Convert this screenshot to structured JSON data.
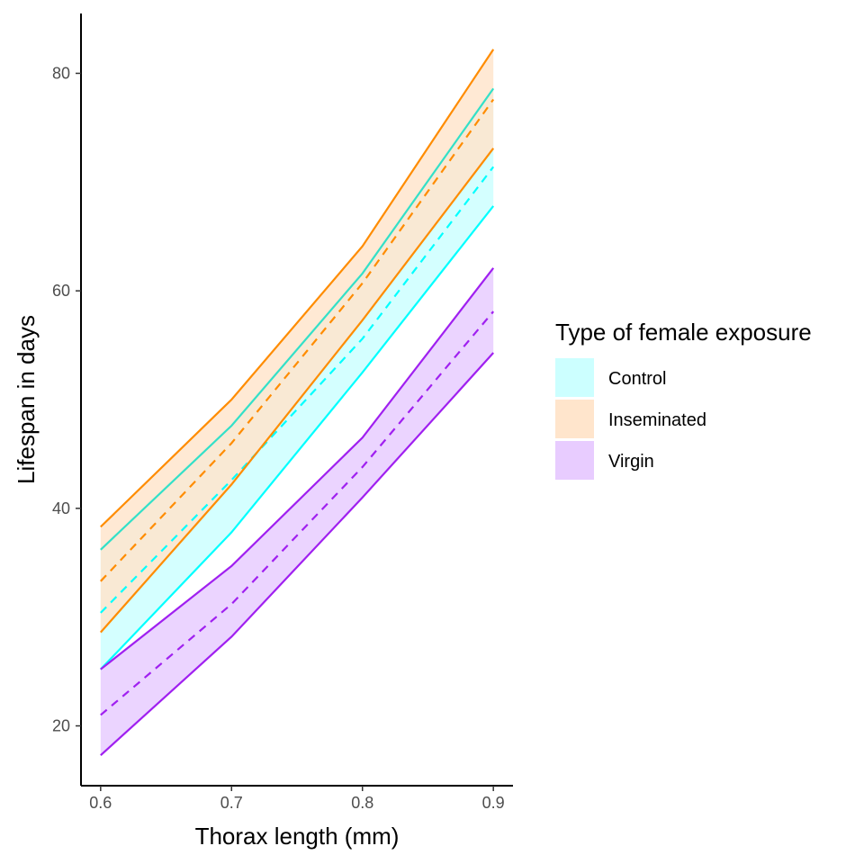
{
  "chart_data": {
    "type": "area",
    "xlabel": "Thorax length (mm)",
    "ylabel": "Lifespan in days",
    "x": [
      0.6,
      0.7,
      0.8,
      0.9
    ],
    "x_ticks": [
      "0.6",
      "0.7",
      "0.8",
      "0.9"
    ],
    "y_ticks": [
      "20",
      "40",
      "60",
      "80"
    ],
    "xlim": [
      0.585,
      0.915
    ],
    "ylim": [
      14.5,
      85.5
    ],
    "grid": false,
    "legend_title": "Type of female exposure",
    "legend_position": "right",
    "series": [
      {
        "name": "Control",
        "fill": "#ccffff",
        "line_color": "#00ffff",
        "upper_color": "#33e0c8",
        "fit": [
          30.4,
          42.6,
          55.6,
          71.4
        ],
        "lower": [
          25.2,
          37.8,
          52.5,
          67.8
        ],
        "upper": [
          36.2,
          47.6,
          61.6,
          78.6
        ]
      },
      {
        "name": "Inseminated",
        "fill": "#ffe5cc",
        "line_color": "#ff8c00",
        "upper_color": "#ff8c00",
        "fit": [
          33.3,
          46.0,
          60.7,
          77.6
        ],
        "lower": [
          28.6,
          42.2,
          57.3,
          73.1
        ],
        "upper": [
          38.3,
          50.0,
          64.1,
          82.2
        ]
      },
      {
        "name": "Virgin",
        "fill": "#e8ccff",
        "line_color": "#a020f0",
        "upper_color": "#a020f0",
        "fit": [
          21.0,
          31.2,
          43.8,
          58.1
        ],
        "lower": [
          17.3,
          28.2,
          41.0,
          54.3
        ],
        "upper": [
          25.2,
          34.7,
          46.5,
          62.1
        ]
      }
    ]
  }
}
